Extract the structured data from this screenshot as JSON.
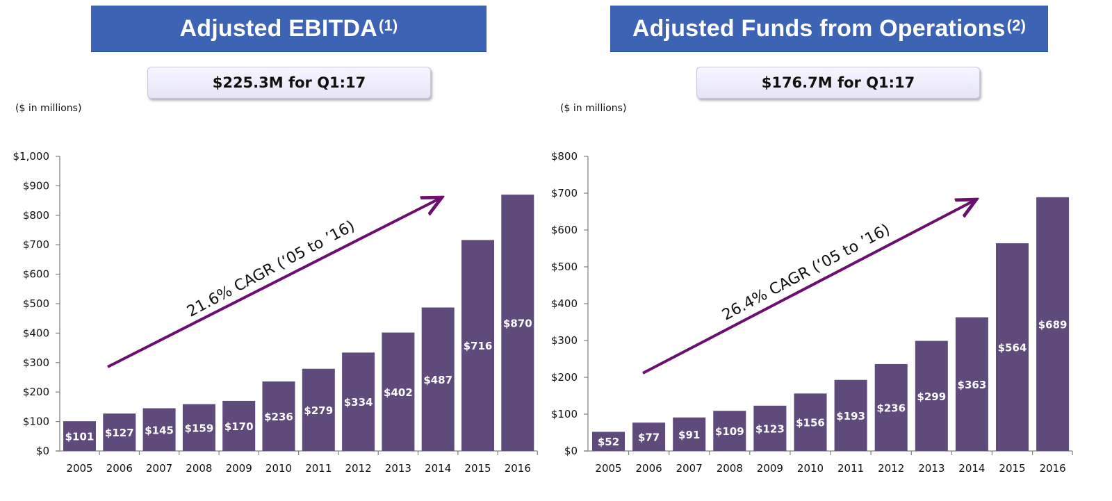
{
  "colors": {
    "title_bar": "#3d63b4",
    "bar": "#5f4a7c",
    "arrow": "#6a0f6e",
    "axis": "#808080"
  },
  "left": {
    "title": "Adjusted EBITDA",
    "title_sup": "(1)",
    "subtitle": "$225.3M for Q1:17",
    "units": "($ in millions)",
    "cagr": "21.6% CAGR (‘05 to ’16)"
  },
  "right": {
    "title": "Adjusted Funds from Operations",
    "title_sup": "(2)",
    "subtitle": "$176.7M for Q1:17",
    "units": "($ in millions)",
    "cagr": "26.4% CAGR (‘05 to ’16)"
  },
  "chart_data": [
    {
      "type": "bar",
      "title": "Adjusted EBITDA",
      "categories": [
        "2005",
        "2006",
        "2007",
        "2008",
        "2009",
        "2010",
        "2011",
        "2012",
        "2013",
        "2014",
        "2015",
        "2016"
      ],
      "values": [
        101,
        127,
        145,
        159,
        170,
        236,
        279,
        334,
        402,
        487,
        716,
        870
      ],
      "value_labels": [
        "$101",
        "$127",
        "$145",
        "$159",
        "$170",
        "$236",
        "$279",
        "$334",
        "$402",
        "$487",
        "$716",
        "$870"
      ],
      "ylim": [
        0,
        1000
      ],
      "yticks": [
        0,
        100,
        200,
        300,
        400,
        500,
        600,
        700,
        800,
        900,
        1000
      ],
      "ytick_labels": [
        "$0",
        "$100",
        "$200",
        "$300",
        "$400",
        "$500",
        "$600",
        "$700",
        "$800",
        "$900",
        "$1,000"
      ],
      "annotation": "21.6% CAGR (‘05 to ’16)",
      "grid": false,
      "legend": "none"
    },
    {
      "type": "bar",
      "title": "Adjusted Funds from Operations",
      "categories": [
        "2005",
        "2006",
        "2007",
        "2008",
        "2009",
        "2010",
        "2011",
        "2012",
        "2013",
        "2014",
        "2015",
        "2016"
      ],
      "values": [
        52,
        77,
        91,
        109,
        123,
        156,
        193,
        236,
        299,
        363,
        564,
        689
      ],
      "value_labels": [
        "$52",
        "$77",
        "$91",
        "$109",
        "$123",
        "$156",
        "$193",
        "$236",
        "$299",
        "$363",
        "$564",
        "$689"
      ],
      "ylim": [
        0,
        800
      ],
      "yticks": [
        0,
        100,
        200,
        300,
        400,
        500,
        600,
        700,
        800
      ],
      "ytick_labels": [
        "$0",
        "$100",
        "$200",
        "$300",
        "$400",
        "$500",
        "$600",
        "$700",
        "$800"
      ],
      "annotation": "26.4% CAGR (‘05 to ’16)",
      "grid": false,
      "legend": "none"
    }
  ]
}
